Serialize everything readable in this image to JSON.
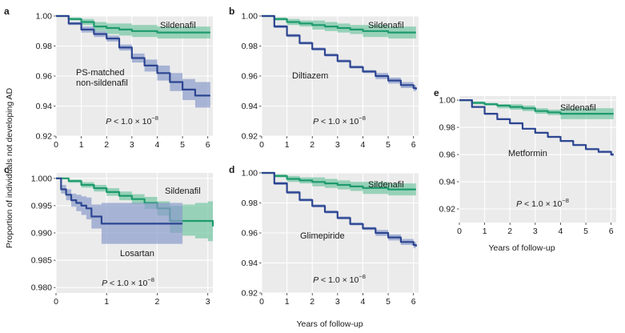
{
  "figure": {
    "ylabel": "Proportion of individuals not developing AD",
    "xlabel_d": "Years of follow-up",
    "xlabel_e": "Years of follow-up"
  },
  "colors": {
    "sildenafil": "#1e9a6e",
    "sildenafil_band": "#74c6a3",
    "comparator": "#2d4691",
    "comparator_band": "#8a9bcb"
  },
  "chart_data": [
    {
      "type": "line",
      "panel": "a",
      "pvalue": "P < 1.0 × 10⁻⁸",
      "xlim": [
        0,
        6.2
      ],
      "ylim": [
        0.92,
        1.0
      ],
      "xticks": [
        "0",
        "1",
        "2",
        "3",
        "4",
        "5",
        "6"
      ],
      "yticks": [
        "0.92",
        "0.94",
        "0.96",
        "0.98",
        "1.00"
      ],
      "series": [
        {
          "name": "Sildenafil",
          "role": "sildenafil",
          "x": [
            0,
            0.5,
            1,
            1.5,
            2,
            2.5,
            3,
            3.5,
            4,
            4.5,
            5,
            5.5,
            6,
            6.1
          ],
          "y": [
            1.0,
            0.998,
            0.996,
            0.993,
            0.992,
            0.991,
            0.99,
            0.99,
            0.989,
            0.989,
            0.989,
            0.989,
            0.989,
            0.989
          ],
          "lower": [
            1.0,
            0.997,
            0.994,
            0.99,
            0.988,
            0.987,
            0.986,
            0.986,
            0.985,
            0.985,
            0.985,
            0.985,
            0.985,
            0.985
          ],
          "upper": [
            1.0,
            0.999,
            0.998,
            0.996,
            0.995,
            0.995,
            0.994,
            0.994,
            0.993,
            0.993,
            0.993,
            0.993,
            0.993,
            0.993
          ]
        },
        {
          "name": "PS-matched non-sildenafil",
          "role": "comparator",
          "x": [
            0,
            0.5,
            1,
            1.5,
            2,
            2.5,
            3,
            3.5,
            4,
            4.5,
            5,
            5.5,
            6,
            6.1
          ],
          "y": [
            1.0,
            0.995,
            0.991,
            0.988,
            0.985,
            0.979,
            0.972,
            0.967,
            0.962,
            0.956,
            0.951,
            0.947,
            0.947,
            0.947
          ],
          "lower": [
            1.0,
            0.994,
            0.989,
            0.986,
            0.983,
            0.977,
            0.969,
            0.963,
            0.957,
            0.95,
            0.944,
            0.939,
            0.939,
            0.939
          ],
          "upper": [
            1.0,
            0.996,
            0.993,
            0.99,
            0.987,
            0.981,
            0.975,
            0.971,
            0.967,
            0.962,
            0.958,
            0.956,
            0.956,
            0.956
          ]
        }
      ]
    },
    {
      "type": "line",
      "panel": "b",
      "pvalue": "P < 1.0 × 10⁻⁸",
      "xlim": [
        0,
        6.2
      ],
      "ylim": [
        0.92,
        1.0
      ],
      "xticks": [
        "0",
        "1",
        "2",
        "3",
        "4",
        "5",
        "6"
      ],
      "yticks": [
        "0.92",
        "0.94",
        "0.96",
        "0.98",
        "1.00"
      ],
      "series": [
        {
          "name": "Sildenafil",
          "role": "sildenafil",
          "x": [
            0,
            0.5,
            1,
            1.5,
            2,
            2.5,
            3,
            3.5,
            4,
            4.5,
            5,
            5.5,
            6,
            6.1
          ],
          "y": [
            1.0,
            0.998,
            0.996,
            0.995,
            0.994,
            0.993,
            0.992,
            0.991,
            0.99,
            0.99,
            0.989,
            0.989,
            0.989,
            0.989
          ],
          "lower": [
            1.0,
            0.997,
            0.994,
            0.993,
            0.991,
            0.99,
            0.989,
            0.988,
            0.986,
            0.986,
            0.985,
            0.985,
            0.985,
            0.985
          ],
          "upper": [
            1.0,
            0.999,
            0.998,
            0.997,
            0.997,
            0.996,
            0.995,
            0.994,
            0.994,
            0.994,
            0.993,
            0.993,
            0.993,
            0.993
          ]
        },
        {
          "name": "Diltiazem",
          "role": "comparator",
          "x": [
            0,
            0.5,
            1,
            1.5,
            2,
            2.5,
            3,
            3.5,
            4,
            4.5,
            5,
            5.5,
            6,
            6.1
          ],
          "y": [
            1.0,
            0.993,
            0.987,
            0.982,
            0.978,
            0.974,
            0.97,
            0.966,
            0.963,
            0.96,
            0.957,
            0.954,
            0.952,
            0.951
          ],
          "lower": [
            1.0,
            0.992,
            0.986,
            0.981,
            0.977,
            0.973,
            0.969,
            0.965,
            0.962,
            0.958,
            0.955,
            0.952,
            0.95,
            0.949
          ],
          "upper": [
            1.0,
            0.994,
            0.988,
            0.983,
            0.979,
            0.975,
            0.971,
            0.967,
            0.964,
            0.962,
            0.959,
            0.956,
            0.954,
            0.953
          ]
        }
      ]
    },
    {
      "type": "line",
      "panel": "c",
      "pvalue": "P < 1.0 × 10⁻⁸",
      "xlim": [
        0,
        3.1
      ],
      "ylim": [
        0.979,
        1.001
      ],
      "xticks": [
        "0",
        "1",
        "2",
        "3"
      ],
      "yticks": [
        "0.980",
        "0.985",
        "0.990",
        "0.995",
        "1.000"
      ],
      "series": [
        {
          "name": "Sildenafil",
          "role": "sildenafil",
          "x": [
            0,
            0.25,
            0.5,
            0.75,
            1,
            1.25,
            1.5,
            1.75,
            2,
            2.25,
            2.5,
            2.75,
            3,
            3.1
          ],
          "y": [
            1.0,
            0.9995,
            0.9988,
            0.9982,
            0.9975,
            0.9968,
            0.9962,
            0.9955,
            0.9945,
            0.9922,
            0.9922,
            0.9922,
            0.9922,
            0.9912
          ],
          "lower": [
            1.0,
            0.9992,
            0.9983,
            0.9976,
            0.9968,
            0.996,
            0.9953,
            0.9944,
            0.9932,
            0.99,
            0.9895,
            0.989,
            0.9885,
            0.9885
          ],
          "upper": [
            1.0,
            0.9998,
            0.9993,
            0.9988,
            0.9982,
            0.9976,
            0.9971,
            0.9966,
            0.9958,
            0.995,
            0.9952,
            0.9955,
            0.9958,
            0.9945
          ]
        },
        {
          "name": "Losartan",
          "role": "comparator",
          "x": [
            0,
            0.1,
            0.2,
            0.3,
            0.4,
            0.5,
            0.6,
            0.7,
            0.9,
            1.2,
            1.5,
            1.8,
            2.1,
            2.5
          ],
          "y": [
            1.0,
            0.998,
            0.997,
            0.996,
            0.9955,
            0.995,
            0.9945,
            0.993,
            0.9917,
            0.9917,
            0.9917,
            0.9917,
            0.9917,
            0.9917
          ],
          "lower": [
            1.0,
            0.9972,
            0.996,
            0.9948,
            0.994,
            0.9933,
            0.9925,
            0.9908,
            0.988,
            0.988,
            0.988,
            0.988,
            0.988,
            0.988
          ],
          "upper": [
            1.0,
            0.9988,
            0.998,
            0.9972,
            0.997,
            0.9967,
            0.9965,
            0.9952,
            0.9955,
            0.9955,
            0.9955,
            0.9955,
            0.9955,
            0.9955
          ]
        }
      ]
    },
    {
      "type": "line",
      "panel": "d",
      "pvalue": "P < 1.0 × 10⁻⁸",
      "xlim": [
        0,
        6.2
      ],
      "ylim": [
        0.92,
        1.0
      ],
      "xticks": [
        "0",
        "1",
        "2",
        "3",
        "4",
        "5",
        "6"
      ],
      "yticks": [
        "0.92",
        "0.94",
        "0.96",
        "0.98",
        "1.00"
      ],
      "series": [
        {
          "name": "Sildenafil",
          "role": "sildenafil",
          "x": [
            0,
            0.5,
            1,
            1.5,
            2,
            2.5,
            3,
            3.5,
            4,
            4.5,
            5,
            5.5,
            6,
            6.1
          ],
          "y": [
            1.0,
            0.998,
            0.996,
            0.995,
            0.994,
            0.993,
            0.992,
            0.991,
            0.99,
            0.99,
            0.989,
            0.989,
            0.989,
            0.989
          ],
          "lower": [
            1.0,
            0.997,
            0.994,
            0.993,
            0.991,
            0.99,
            0.989,
            0.988,
            0.986,
            0.986,
            0.985,
            0.985,
            0.985,
            0.985
          ],
          "upper": [
            1.0,
            0.999,
            0.998,
            0.997,
            0.997,
            0.996,
            0.995,
            0.994,
            0.994,
            0.994,
            0.993,
            0.993,
            0.993,
            0.993
          ]
        },
        {
          "name": "Glimepiride",
          "role": "comparator",
          "x": [
            0,
            0.5,
            1,
            1.5,
            2,
            2.5,
            3,
            3.5,
            4,
            4.5,
            5,
            5.5,
            6,
            6.1
          ],
          "y": [
            1.0,
            0.993,
            0.987,
            0.982,
            0.978,
            0.974,
            0.97,
            0.966,
            0.963,
            0.96,
            0.957,
            0.954,
            0.952,
            0.951
          ],
          "lower": [
            1.0,
            0.992,
            0.986,
            0.981,
            0.977,
            0.973,
            0.969,
            0.965,
            0.962,
            0.958,
            0.955,
            0.952,
            0.95,
            0.949
          ],
          "upper": [
            1.0,
            0.994,
            0.988,
            0.983,
            0.979,
            0.975,
            0.971,
            0.967,
            0.964,
            0.962,
            0.959,
            0.956,
            0.954,
            0.953
          ]
        }
      ]
    },
    {
      "type": "line",
      "panel": "e",
      "pvalue": "P < 1.0 × 10⁻⁸",
      "xlim": [
        0,
        6.2
      ],
      "ylim": [
        0.91,
        1.003
      ],
      "xticks": [
        "0",
        "1",
        "2",
        "3",
        "4",
        "5",
        "6"
      ],
      "yticks": [
        "0.92",
        "0.94",
        "0.96",
        "0.98",
        "1.00"
      ],
      "series": [
        {
          "name": "Sildenafil",
          "role": "sildenafil",
          "x": [
            0,
            0.5,
            1,
            1.5,
            2,
            2.5,
            3,
            3.5,
            4,
            4.5,
            5,
            5.5,
            6,
            6.1
          ],
          "y": [
            1.0,
            0.998,
            0.997,
            0.996,
            0.995,
            0.994,
            0.992,
            0.991,
            0.99,
            0.99,
            0.99,
            0.99,
            0.99,
            0.99
          ],
          "lower": [
            1.0,
            0.997,
            0.996,
            0.994,
            0.993,
            0.992,
            0.99,
            0.989,
            0.986,
            0.986,
            0.986,
            0.986,
            0.986,
            0.986
          ],
          "upper": [
            1.0,
            0.999,
            0.998,
            0.997,
            0.997,
            0.996,
            0.994,
            0.993,
            0.994,
            0.994,
            0.994,
            0.994,
            0.994,
            0.994
          ]
        },
        {
          "name": "Metformin",
          "role": "comparator",
          "x": [
            0,
            0.5,
            1,
            1.5,
            2,
            2.5,
            3,
            3.5,
            4,
            4.5,
            5,
            5.5,
            6,
            6.1
          ],
          "y": [
            1.0,
            0.995,
            0.99,
            0.986,
            0.983,
            0.979,
            0.976,
            0.973,
            0.97,
            0.967,
            0.964,
            0.962,
            0.96,
            0.96
          ],
          "lower": [
            1.0,
            0.9945,
            0.9893,
            0.9853,
            0.9823,
            0.9783,
            0.9753,
            0.9723,
            0.9693,
            0.9662,
            0.9632,
            0.9611,
            0.959,
            0.959
          ],
          "upper": [
            1.0,
            0.9955,
            0.9907,
            0.9867,
            0.9837,
            0.9797,
            0.9767,
            0.9737,
            0.9707,
            0.9678,
            0.9648,
            0.9629,
            0.961,
            0.961
          ]
        }
      ]
    }
  ]
}
